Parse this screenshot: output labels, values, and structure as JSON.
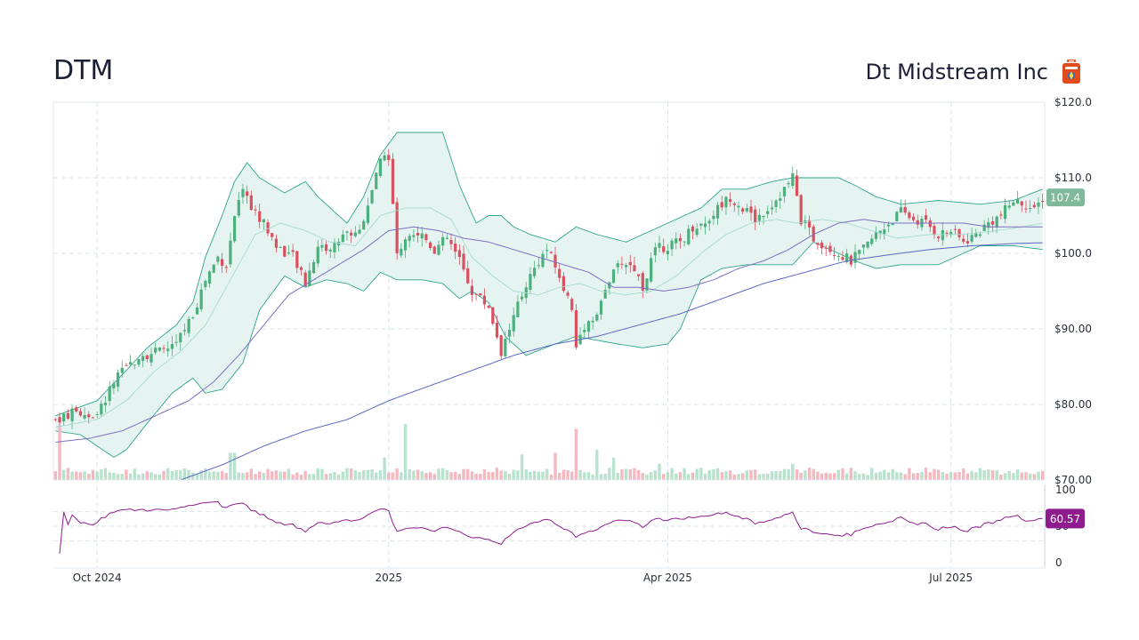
{
  "header": {
    "ticker": "DTM",
    "company": "Dt Midstream Inc",
    "logo_icon": "fuel-can-logo-icon"
  },
  "colors": {
    "up": "#4caf7d",
    "down": "#d9505f",
    "band_fill": "#e6f4f1",
    "band_line": "#2ea58c",
    "sma_short": "#a6d9cd",
    "sma_mid": "#7b6fc4",
    "sma_long": "#5a67c2",
    "rsi": "#8e1c8e",
    "last_price_badge": "#7fb89a",
    "rsi_badge": "#8e1c8e",
    "grid": "#d7e3ea"
  },
  "chart_data": [
    {
      "type": "candlestick",
      "title": "",
      "x_ticks": [
        "Oct 2024",
        "2025",
        "Apr 2025",
        "Jul 2025"
      ],
      "y_ticks": [
        "$120.0",
        "$110.0",
        "$100.0",
        "$90.00",
        "$80.00",
        "$70.00"
      ],
      "ylim": [
        70,
        120
      ],
      "last_price": "107.4",
      "grid": true,
      "overlays": [
        "bollinger-bands-20",
        "sma-50",
        "sma-200"
      ],
      "close_path": [
        [
          0,
          78.0
        ],
        [
          5,
          79.0
        ],
        [
          10,
          78.5
        ],
        [
          14,
          83.0
        ],
        [
          20,
          86.5
        ],
        [
          25,
          87.0
        ],
        [
          29,
          88.0
        ],
        [
          33,
          92.0
        ],
        [
          36,
          96.5
        ],
        [
          39,
          99.5
        ],
        [
          41,
          98.5
        ],
        [
          43,
          104.5
        ],
        [
          45,
          109.0
        ],
        [
          47,
          106.0
        ],
        [
          50,
          104.0
        ],
        [
          53,
          101.0
        ],
        [
          57,
          99.5
        ],
        [
          60,
          96.0
        ],
        [
          63,
          101.0
        ],
        [
          66,
          100.5
        ],
        [
          69,
          102.5
        ],
        [
          73,
          103.0
        ],
        [
          76,
          108.5
        ],
        [
          79,
          113.5
        ],
        [
          80,
          113.0
        ],
        [
          81,
          106.0
        ],
        [
          82,
          100.0
        ],
        [
          85,
          103.0
        ],
        [
          88,
          102.5
        ],
        [
          91,
          100.5
        ],
        [
          94,
          102.0
        ],
        [
          97,
          99.0
        ],
        [
          100,
          95.0
        ],
        [
          104,
          93.0
        ],
        [
          107,
          87.0
        ],
        [
          109,
          90.0
        ],
        [
          113,
          96.0
        ],
        [
          116,
          99.0
        ],
        [
          118,
          100.5
        ],
        [
          121,
          97.0
        ],
        [
          124,
          93.0
        ],
        [
          125,
          88.0
        ],
        [
          127,
          90.5
        ],
        [
          130,
          92.0
        ],
        [
          133,
          96.5
        ],
        [
          136,
          99.0
        ],
        [
          139,
          98.0
        ],
        [
          141,
          95.5
        ],
        [
          144,
          100.5
        ],
        [
          147,
          101.0
        ],
        [
          150,
          101.5
        ],
        [
          153,
          103.5
        ],
        [
          156,
          104.0
        ],
        [
          159,
          106.0
        ],
        [
          162,
          107.5
        ],
        [
          165,
          106.0
        ],
        [
          168,
          104.5
        ],
        [
          172,
          106.5
        ],
        [
          175,
          108.5
        ],
        [
          177,
          110.0
        ],
        [
          179,
          104.5
        ],
        [
          182,
          102.0
        ],
        [
          185,
          101.0
        ],
        [
          188,
          100.0
        ],
        [
          191,
          99.0
        ],
        [
          194,
          100.5
        ],
        [
          197,
          102.5
        ],
        [
          200,
          104.0
        ],
        [
          203,
          105.5
        ],
        [
          206,
          104.5
        ],
        [
          209,
          104.0
        ],
        [
          212,
          102.5
        ],
        [
          215,
          103.0
        ],
        [
          218,
          101.5
        ],
        [
          221,
          102.5
        ],
        [
          224,
          104.0
        ],
        [
          227,
          105.0
        ],
        [
          230,
          107.0
        ],
        [
          233,
          106.5
        ],
        [
          235,
          105.5
        ],
        [
          237,
          107.4
        ]
      ],
      "bollinger_upper_path": [
        [
          0,
          78.5
        ],
        [
          10,
          80.5
        ],
        [
          17,
          84.5
        ],
        [
          22,
          87.5
        ],
        [
          29,
          90.5
        ],
        [
          33,
          93.5
        ],
        [
          36,
          99.5
        ],
        [
          40,
          105.0
        ],
        [
          43,
          109.5
        ],
        [
          46,
          112.0
        ],
        [
          49,
          110.0
        ],
        [
          55,
          108.0
        ],
        [
          60,
          109.5
        ],
        [
          63,
          107.5
        ],
        [
          70,
          104.0
        ],
        [
          74,
          107.5
        ],
        [
          78,
          113.0
        ],
        [
          82,
          116.0
        ],
        [
          88,
          116.0
        ],
        [
          93,
          116.0
        ],
        [
          97,
          109.0
        ],
        [
          101,
          104.0
        ],
        [
          104,
          105.0
        ],
        [
          107,
          105.0
        ],
        [
          110,
          103.5
        ],
        [
          114,
          102.5
        ],
        [
          120,
          101.5
        ],
        [
          125,
          103.5
        ],
        [
          130,
          102.5
        ],
        [
          137,
          101.5
        ],
        [
          143,
          103.0
        ],
        [
          149,
          104.5
        ],
        [
          155,
          106.0
        ],
        [
          160,
          108.5
        ],
        [
          166,
          108.5
        ],
        [
          172,
          109.5
        ],
        [
          177,
          110.0
        ],
        [
          182,
          110.0
        ],
        [
          188,
          110.0
        ],
        [
          192,
          109.0
        ],
        [
          197,
          107.5
        ],
        [
          203,
          106.5
        ],
        [
          212,
          107.0
        ],
        [
          222,
          106.5
        ],
        [
          230,
          107.0
        ],
        [
          237,
          108.5
        ]
      ],
      "bollinger_lower_path": [
        [
          0,
          76.5
        ],
        [
          6,
          76.0
        ],
        [
          10,
          74.5
        ],
        [
          14,
          73.0
        ],
        [
          17,
          74.0
        ],
        [
          22,
          77.5
        ],
        [
          28,
          81.5
        ],
        [
          33,
          83.5
        ],
        [
          36,
          81.5
        ],
        [
          40,
          82.0
        ],
        [
          45,
          85.5
        ],
        [
          49,
          92.5
        ],
        [
          55,
          97.0
        ],
        [
          60,
          95.5
        ],
        [
          65,
          96.5
        ],
        [
          70,
          96.0
        ],
        [
          74,
          95.0
        ],
        [
          78,
          97.5
        ],
        [
          82,
          96.5
        ],
        [
          88,
          96.5
        ],
        [
          93,
          96.0
        ],
        [
          97,
          94.0
        ],
        [
          100,
          95.0
        ],
        [
          104,
          93.5
        ],
        [
          108,
          89.0
        ],
        [
          113,
          86.5
        ],
        [
          120,
          88.0
        ],
        [
          125,
          89.0
        ],
        [
          130,
          88.5
        ],
        [
          135,
          88.0
        ],
        [
          141,
          87.5
        ],
        [
          147,
          88.0
        ],
        [
          150,
          90.0
        ],
        [
          155,
          96.5
        ],
        [
          160,
          98.0
        ],
        [
          166,
          98.5
        ],
        [
          172,
          98.5
        ],
        [
          177,
          98.5
        ],
        [
          182,
          101.5
        ],
        [
          188,
          100.0
        ],
        [
          192,
          99.0
        ],
        [
          197,
          98.0
        ],
        [
          203,
          98.5
        ],
        [
          212,
          98.5
        ],
        [
          222,
          101.0
        ],
        [
          230,
          101.0
        ],
        [
          237,
          100.5
        ]
      ],
      "sma_short_path": [
        [
          0,
          77.0
        ],
        [
          10,
          78.0
        ],
        [
          17,
          80.5
        ],
        [
          24,
          84.5
        ],
        [
          30,
          87.0
        ],
        [
          36,
          90.5
        ],
        [
          42,
          96.5
        ],
        [
          48,
          102.5
        ],
        [
          54,
          104.0
        ],
        [
          60,
          103.0
        ],
        [
          66,
          101.5
        ],
        [
          72,
          101.0
        ],
        [
          78,
          105.0
        ],
        [
          84,
          106.0
        ],
        [
          90,
          106.0
        ],
        [
          95,
          104.5
        ],
        [
          100,
          99.5
        ],
        [
          105,
          97.0
        ],
        [
          110,
          95.0
        ],
        [
          116,
          94.5
        ],
        [
          121,
          95.5
        ],
        [
          126,
          96.0
        ],
        [
          131,
          95.0
        ],
        [
          137,
          94.5
        ],
        [
          143,
          95.0
        ],
        [
          149,
          97.0
        ],
        [
          155,
          100.0
        ],
        [
          161,
          102.5
        ],
        [
          167,
          104.0
        ],
        [
          173,
          104.5
        ],
        [
          178,
          104.0
        ],
        [
          184,
          104.5
        ],
        [
          190,
          104.0
        ],
        [
          196,
          103.0
        ],
        [
          202,
          102.0
        ],
        [
          210,
          102.5
        ],
        [
          218,
          102.5
        ],
        [
          226,
          103.0
        ],
        [
          232,
          103.5
        ],
        [
          237,
          104.0
        ]
      ],
      "sma_mid_path": [
        [
          0,
          75.0
        ],
        [
          8,
          75.5
        ],
        [
          16,
          76.5
        ],
        [
          24,
          78.5
        ],
        [
          32,
          80.5
        ],
        [
          38,
          83.0
        ],
        [
          44,
          86.5
        ],
        [
          50,
          90.5
        ],
        [
          56,
          94.5
        ],
        [
          62,
          96.5
        ],
        [
          68,
          98.5
        ],
        [
          74,
          100.5
        ],
        [
          80,
          103.0
        ],
        [
          86,
          103.5
        ],
        [
          92,
          103.0
        ],
        [
          98,
          102.0
        ],
        [
          104,
          101.5
        ],
        [
          110,
          100.5
        ],
        [
          116,
          99.5
        ],
        [
          122,
          98.5
        ],
        [
          128,
          97.5
        ],
        [
          134,
          95.5
        ],
        [
          140,
          95.5
        ],
        [
          146,
          95.0
        ],
        [
          152,
          95.5
        ],
        [
          158,
          96.5
        ],
        [
          164,
          98.0
        ],
        [
          170,
          99.0
        ],
        [
          176,
          100.5
        ],
        [
          182,
          102.5
        ],
        [
          188,
          104.0
        ],
        [
          194,
          104.5
        ],
        [
          200,
          104.0
        ],
        [
          206,
          104.0
        ],
        [
          212,
          104.0
        ],
        [
          218,
          104.0
        ],
        [
          224,
          103.5
        ],
        [
          230,
          103.5
        ],
        [
          237,
          103.5
        ]
      ],
      "sma_long_path": [
        [
          30,
          70.0
        ],
        [
          40,
          72.0
        ],
        [
          50,
          74.5
        ],
        [
          60,
          76.5
        ],
        [
          70,
          78.0
        ],
        [
          80,
          80.5
        ],
        [
          90,
          82.5
        ],
        [
          100,
          84.5
        ],
        [
          110,
          86.5
        ],
        [
          120,
          88.0
        ],
        [
          130,
          89.0
        ],
        [
          140,
          90.5
        ],
        [
          150,
          92.0
        ],
        [
          160,
          94.0
        ],
        [
          170,
          96.0
        ],
        [
          180,
          97.5
        ],
        [
          190,
          99.0
        ],
        [
          200,
          99.8
        ],
        [
          210,
          100.5
        ],
        [
          220,
          101.0
        ],
        [
          230,
          101.3
        ],
        [
          237,
          101.4
        ]
      ]
    },
    {
      "type": "bar",
      "title": "Volume",
      "note": "volume bars under the price pane, colored by candle direction",
      "spikes": [
        [
          1,
          3.4
        ],
        [
          42,
          1.7
        ],
        [
          43,
          1.7
        ],
        [
          84,
          3.5
        ],
        [
          79,
          1.4
        ],
        [
          112,
          1.6
        ],
        [
          120,
          1.7
        ],
        [
          125,
          3.2
        ],
        [
          130,
          1.9
        ],
        [
          134,
          1.4
        ],
        [
          145,
          1.0
        ],
        [
          177,
          1.0
        ]
      ]
    },
    {
      "type": "line",
      "title": "RSI",
      "y_ticks": [
        "100",
        "50",
        "0"
      ],
      "ylim": [
        0,
        100
      ],
      "last_value": "60.57",
      "grid": true
    }
  ]
}
